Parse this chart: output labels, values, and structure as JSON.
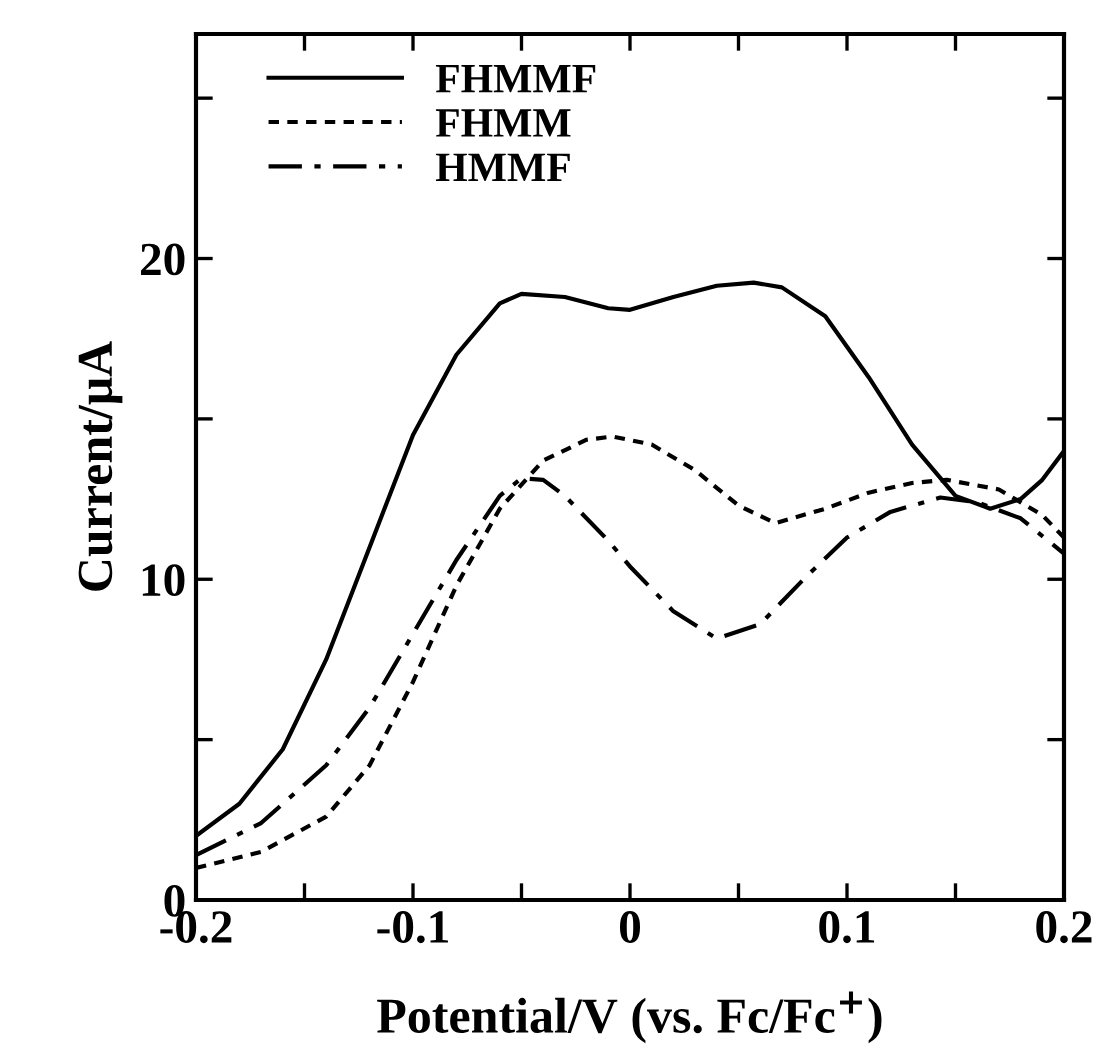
{
  "chart_data": {
    "type": "line",
    "xlabel": "Potential/V (vs. Fc/Fc$^{+}$)",
    "ylabel": "Current/μA",
    "xlim": [
      -0.2,
      0.2
    ],
    "ylim": [
      0,
      27
    ],
    "xticks": [
      -0.2,
      {
        "value": -0.15,
        "label": null
      },
      -0.1,
      {
        "value": -0.05,
        "label": null
      },
      0,
      {
        "value": 0.05,
        "label": null
      },
      0.1,
      {
        "value": 0.15,
        "label": null
      },
      0.2
    ],
    "yticks": [
      0,
      {
        "value": 5,
        "label": null
      },
      10,
      {
        "value": 15,
        "label": null
      },
      20,
      {
        "value": 25,
        "label": null
      }
    ],
    "grid": false,
    "legend": "top left",
    "marker": "none",
    "series": [
      {
        "name": "FHMMF",
        "color": "#000000",
        "line_style": "solid",
        "x": [
          -0.2,
          -0.18,
          -0.16,
          -0.14,
          -0.12,
          -0.1,
          -0.08,
          -0.06,
          -0.05,
          -0.03,
          -0.01,
          0.0,
          0.02,
          0.04,
          0.057,
          0.07,
          0.09,
          0.11,
          0.13,
          0.15,
          0.166,
          0.18,
          0.19,
          0.2
        ],
        "values": [
          2.0,
          3.0,
          4.7,
          7.5,
          11.0,
          14.5,
          17.0,
          18.6,
          18.9,
          18.8,
          18.45,
          18.4,
          18.8,
          19.15,
          19.25,
          19.1,
          18.2,
          16.3,
          14.2,
          12.6,
          12.2,
          12.5,
          13.1,
          14.0
        ]
      },
      {
        "name": "FHMM",
        "color": "#000000",
        "line_style": "dashed",
        "x": [
          -0.2,
          -0.17,
          -0.14,
          -0.12,
          -0.1,
          -0.08,
          -0.06,
          -0.04,
          -0.02,
          -0.008,
          0.01,
          0.03,
          0.05,
          0.067,
          0.09,
          0.11,
          0.13,
          0.146,
          0.17,
          0.19,
          0.2
        ],
        "values": [
          1.0,
          1.5,
          2.6,
          4.2,
          6.8,
          9.8,
          12.2,
          13.7,
          14.35,
          14.45,
          14.2,
          13.4,
          12.3,
          11.75,
          12.2,
          12.7,
          13.0,
          13.1,
          12.8,
          12.0,
          11.3
        ]
      },
      {
        "name": "HMMF",
        "color": "#000000",
        "line_style": "dashdot",
        "x": [
          -0.2,
          -0.17,
          -0.14,
          -0.12,
          -0.1,
          -0.08,
          -0.07,
          -0.06,
          -0.05,
          -0.04,
          -0.03,
          -0.01,
          0.0,
          0.02,
          0.04,
          0.06,
          0.08,
          0.1,
          0.12,
          0.143,
          0.16,
          0.18,
          0.2
        ],
        "values": [
          1.4,
          2.4,
          4.2,
          6.0,
          8.3,
          10.6,
          11.6,
          12.6,
          13.15,
          13.1,
          12.6,
          11.2,
          10.4,
          9.0,
          8.15,
          8.6,
          10.0,
          11.3,
          12.1,
          12.55,
          12.4,
          11.9,
          10.8
        ]
      }
    ]
  }
}
